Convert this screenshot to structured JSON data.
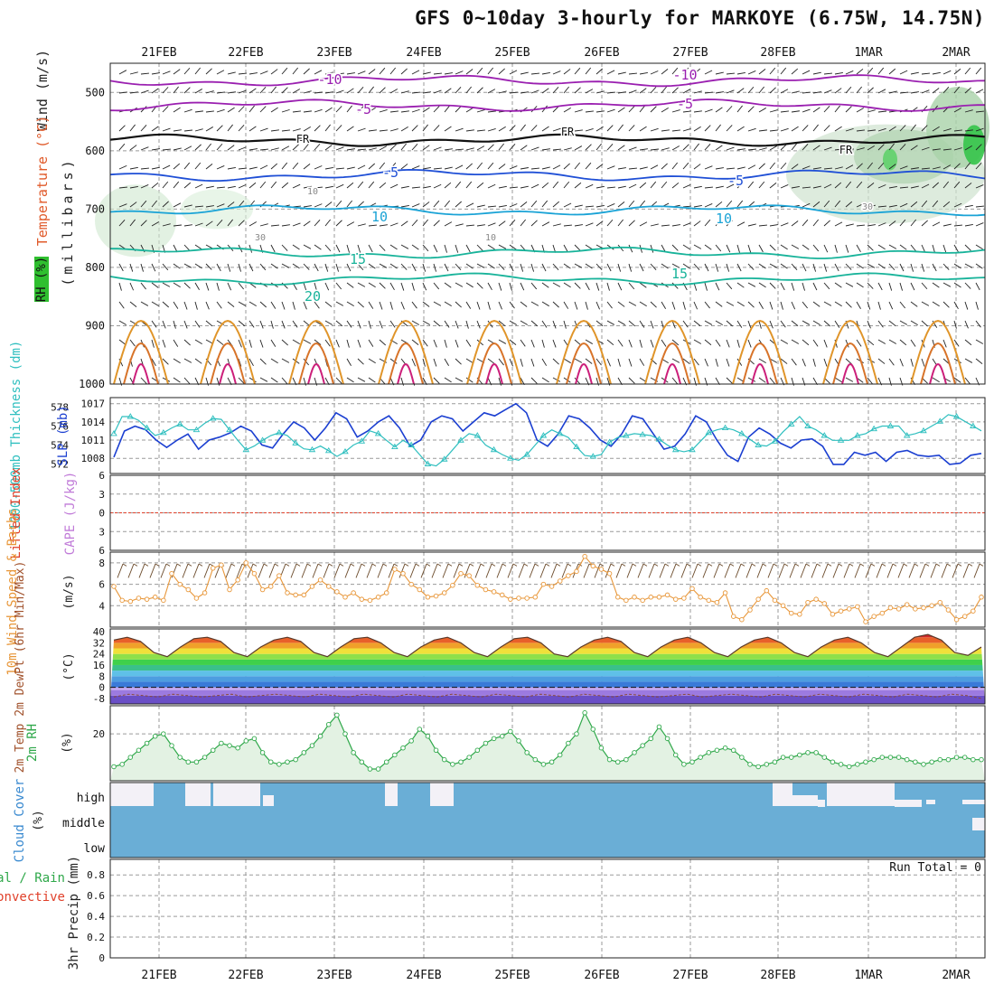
{
  "title": "GFS 0~10day 3-hourly for MARKOYE (6.75W, 14.75N)",
  "colors": {
    "purple": "#9a1fb0",
    "blue": "#1f4fd6",
    "cyan": "#1aa3d6",
    "teal": "#18b39a",
    "orange": "#e0952a",
    "green": "#2fa84a",
    "red": "#e0402a",
    "cloud": "#6aaed6",
    "slp": "#1b3fd1",
    "thick": "#2fbfbf",
    "wind": "#e8973a"
  },
  "chart_data": [
    {
      "panel": "upper-air",
      "type": "line",
      "ylabel": "(millibars)",
      "side_labels": [
        "Wind (m/s)",
        "Temperature (°C)",
        "RH (%)"
      ],
      "x": [
        "21FEB",
        "22FEB",
        "23FEB",
        "24FEB",
        "25FEB",
        "26FEB",
        "27FEB",
        "28FEB",
        "1MAR",
        "2MAR"
      ],
      "yticks": [
        500,
        600,
        700,
        800,
        900,
        1000
      ],
      "ylim": [
        1000,
        450
      ],
      "contour_labels": [
        "-10",
        "-5",
        "FR",
        "-5",
        "10",
        "15",
        "20",
        "-10",
        "-5",
        "FR",
        "-5",
        "10",
        "15",
        "10",
        "10",
        "30",
        "30",
        "FR"
      ],
      "isotherms": [
        {
          "name": "-10",
          "level": 480
        },
        {
          "name": "-5",
          "level": 522
        },
        {
          "name": "FR",
          "level": 582
        },
        {
          "name": "-5",
          "level": 642
        },
        {
          "name": "10",
          "level": 702
        },
        {
          "name": "15",
          "level": 775
        },
        {
          "name": "20",
          "level": 820
        }
      ]
    },
    {
      "panel": "slp-thickness",
      "type": "line",
      "left_label": "1000-500mb Thickness (dm)",
      "right_label": "SLP (mb)",
      "slp_ticks": [
        1017,
        1014,
        1011,
        1008
      ],
      "thick_ticks": [
        578,
        576,
        574,
        572
      ],
      "series": [
        {
          "name": "SLP (mb)",
          "values": [
            1008.2,
            1012.5,
            1013.3,
            1012.7,
            1011.0,
            1009.8,
            1011.0,
            1012.0,
            1009.5,
            1011.0,
            1011.5,
            1012.2,
            1013.3,
            1012.5,
            1010.2,
            1009.7,
            1012.0,
            1014.0,
            1013.0,
            1011.0,
            1013.0,
            1015.5,
            1014.5,
            1011.5,
            1012.5,
            1014.0,
            1015.0,
            1013.0,
            1010.0,
            1011.0,
            1014.0,
            1015.0,
            1014.5,
            1012.5,
            1014.0,
            1015.5,
            1015.0,
            1016.0,
            1017.0,
            1015.5,
            1011.0,
            1010.0,
            1012.0,
            1015.0,
            1014.5,
            1013.0,
            1011.0,
            1010.0,
            1012.0,
            1015.0,
            1014.5,
            1012.0,
            1009.5,
            1010.0,
            1012.0,
            1015.0,
            1014.0,
            1011.0,
            1008.5,
            1007.5,
            1011.5,
            1013.0,
            1012.0,
            1010.5,
            1009.7,
            1011.0,
            1011.2,
            1010.0,
            1007.0,
            1007.0,
            1009.0,
            1008.5,
            1009.0,
            1007.5,
            1009.0,
            1009.3,
            1008.5,
            1008.3,
            1008.5,
            1007.0,
            1007.2,
            1008.5,
            1008.8
          ]
        },
        {
          "name": "1000-500mb Thickness (dm)",
          "values": [
            575.2,
            577.0,
            577.0,
            576.6,
            575.8,
            575.0,
            575.3,
            575.8,
            576.2,
            575.6,
            575.6,
            576.3,
            576.8,
            576.7,
            575.6,
            574.5,
            573.5,
            573.9,
            574.5,
            575.0,
            575.3,
            575.0,
            574.2,
            573.6,
            573.5,
            573.9,
            573.4,
            572.8,
            573.3,
            574.0,
            574.4,
            575.5,
            575.2,
            574.5,
            573.8,
            574.5,
            574.0,
            573.0,
            572.0,
            571.8,
            572.5,
            573.5,
            574.5,
            575.2,
            575.0,
            574.0,
            573.5,
            573.0,
            572.6,
            572.4,
            573.0,
            574.0,
            575.0,
            575.6,
            575.2,
            574.8,
            573.8,
            572.9,
            572.8,
            573.0,
            574.3,
            574.8,
            575.0,
            575.2,
            575.1,
            575.0,
            574.6,
            574.0,
            573.5,
            573.3,
            573.5,
            574.4,
            575.3,
            575.6,
            575.8,
            575.6,
            575.2,
            574.6,
            574.0,
            573.9,
            574.4,
            575.4,
            576.2,
            577.0,
            576.0,
            575.6,
            575.0,
            574.5,
            574.5,
            574.5,
            575.0,
            575.2,
            575.7,
            576.0,
            576.0,
            576.0,
            575.0,
            575.2,
            575.5,
            576.0,
            576.5,
            577.2,
            577.0,
            576.5,
            576.0,
            575.5
          ]
        }
      ],
      "grid": true
    },
    {
      "panel": "lifted-index",
      "type": "line",
      "left_label": "Lifted Index",
      "right_label": "CAPE (J/kg)",
      "yticks": [
        -6,
        -3,
        0,
        3,
        6
      ],
      "series": [
        {
          "name": "Lifted Index",
          "values": [
            0,
            0,
            0,
            0,
            0,
            0,
            0,
            0,
            0,
            0
          ]
        }
      ]
    },
    {
      "panel": "wind-10m",
      "type": "line",
      "left_label": "10m Wind Speed & Barbs",
      "unit": "(m/s)",
      "yticks": [
        4,
        6,
        8
      ],
      "series": [
        {
          "name": "10m Wind Speed",
          "values": [
            5.8,
            4.5,
            4.4,
            4.7,
            4.6,
            4.8,
            4.5,
            7.0,
            6.0,
            5.5,
            4.7,
            5.2,
            7.5,
            7.8,
            5.5,
            6.4,
            8.0,
            7.0,
            5.5,
            5.8,
            6.8,
            5.2,
            5.0,
            5.0,
            5.8,
            6.4,
            5.8,
            5.3,
            4.8,
            5.2,
            4.6,
            4.5,
            4.8,
            5.2,
            7.4,
            7.0,
            6.0,
            5.5,
            4.8,
            4.9,
            5.2,
            5.9,
            7.0,
            6.8,
            5.9,
            5.5,
            5.3,
            5.0,
            4.6,
            4.7,
            4.7,
            4.8,
            6.0,
            5.8,
            6.3,
            6.8,
            7.2,
            8.6,
            7.7,
            7.4,
            7.0,
            4.8,
            4.5,
            4.8,
            4.5,
            4.8,
            4.8,
            5.0,
            4.6,
            4.7,
            5.6,
            4.8,
            4.5,
            4.3,
            5.2,
            3.0,
            2.7,
            3.6,
            4.6,
            5.4,
            4.5,
            4.0,
            3.3,
            3.2,
            4.3,
            4.6,
            4.2,
            3.2,
            3.5,
            3.7,
            3.9,
            2.5,
            3.0,
            3.3,
            3.8,
            3.7,
            4.1,
            3.7,
            3.8,
            4.0,
            4.3,
            3.6,
            2.7,
            3.0,
            3.5,
            4.8
          ]
        }
      ],
      "grid": true
    },
    {
      "panel": "temperature-2m",
      "type": "area",
      "left_label": "2m Temp 2m DewPt (6hr Min/Max)",
      "unit": "(°C)",
      "yticks": [
        40,
        32,
        24,
        16,
        8,
        0,
        -8
      ],
      "series": [
        {
          "name": "2m Temp",
          "values": [
            34,
            36,
            33,
            25,
            22,
            29,
            35,
            36,
            33,
            25,
            22,
            29,
            34,
            36,
            33,
            25,
            22,
            29,
            35,
            36,
            32,
            25,
            22,
            29,
            34,
            36,
            32,
            25,
            22,
            29,
            35,
            36,
            32,
            24,
            22,
            29,
            34,
            36,
            33,
            25,
            22,
            29,
            34,
            36,
            32,
            25,
            22,
            29,
            34,
            36,
            32,
            25,
            22,
            29,
            34,
            36,
            32,
            25,
            22,
            29,
            36,
            38,
            34,
            25,
            23,
            29
          ]
        },
        {
          "name": "2m DewPt",
          "values": [
            -7,
            -5,
            -6,
            -7,
            -5,
            -6,
            -7,
            -6,
            -5,
            -7,
            -6,
            -5,
            -6,
            -7,
            -5,
            -6,
            -7,
            -5,
            -6,
            -7,
            -5,
            -6,
            -7,
            -5,
            -6,
            -7,
            -5,
            -6,
            -7,
            -5,
            -6,
            -7,
            -5,
            -6,
            -7,
            -5,
            -6,
            -7,
            -6,
            -5,
            -7,
            -6,
            -5,
            -6,
            -7,
            -5,
            -6,
            -7,
            -5,
            -6,
            -7,
            -5,
            -6,
            -7,
            -5,
            -6,
            -7,
            -5,
            -6,
            -8
          ]
        }
      ]
    },
    {
      "panel": "rh-2m",
      "type": "area",
      "left_label": "2m RH",
      "unit": "(%)",
      "yticks": [
        20
      ],
      "series": [
        {
          "name": "2m RH",
          "values": [
            6,
            7,
            10,
            13,
            16,
            19,
            20,
            15,
            10,
            8,
            8,
            10,
            13,
            16,
            15,
            14,
            17,
            18,
            12,
            8,
            7,
            8,
            9,
            12,
            15,
            19,
            24,
            28,
            20,
            12,
            8,
            5,
            5,
            8,
            11,
            14,
            17,
            22,
            19,
            13,
            9,
            7,
            8,
            10,
            13,
            16,
            18,
            19,
            21,
            17,
            12,
            9,
            7,
            8,
            11,
            16,
            20,
            29,
            22,
            14,
            9,
            8,
            9,
            12,
            15,
            18,
            23,
            18,
            11,
            7,
            8,
            10,
            12,
            13,
            14,
            13,
            10,
            7,
            6,
            7,
            8,
            10,
            10,
            11,
            12,
            12,
            10,
            8,
            7,
            6,
            7,
            8,
            9,
            10,
            10,
            10,
            9,
            8,
            7,
            8,
            9,
            9,
            10,
            10,
            9,
            9
          ]
        }
      ]
    },
    {
      "panel": "cloud-cover",
      "type": "heatmap",
      "left_label": "Cloud Cover",
      "unit": "(%)",
      "rows": [
        "high",
        "middle",
        "low"
      ]
    },
    {
      "panel": "precip",
      "type": "bar",
      "left_labels": [
        "Total / Rain",
        "Convective"
      ],
      "ylabel": "3hr Precip (mm)",
      "yticks": [
        0,
        0.2,
        0.4,
        0.6,
        0.8
      ],
      "annotation": "Run Total = 0",
      "values": []
    }
  ]
}
